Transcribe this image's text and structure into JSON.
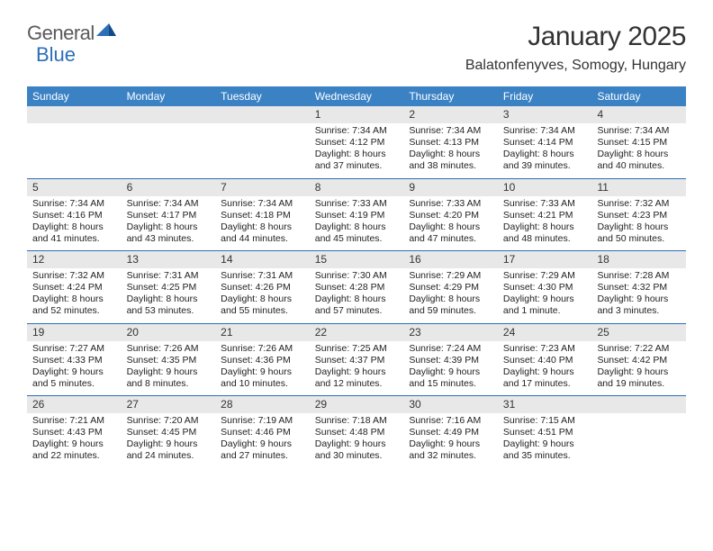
{
  "logo": {
    "word1": "General",
    "word2": "Blue"
  },
  "title": "January 2025",
  "location": "Balatonfenyves, Somogy, Hungary",
  "colors": {
    "header_bar": "#3b82c4",
    "row_divider": "#2d6fb6",
    "daynum_bg": "#e8e8e8",
    "text": "#222222",
    "logo_blue": "#2d6fb6",
    "logo_gray": "#5a5a5a"
  },
  "weekdays": [
    "Sunday",
    "Monday",
    "Tuesday",
    "Wednesday",
    "Thursday",
    "Friday",
    "Saturday"
  ],
  "weeks": [
    [
      {
        "n": "",
        "empty": true
      },
      {
        "n": "",
        "empty": true
      },
      {
        "n": "",
        "empty": true
      },
      {
        "n": "1",
        "sr": "Sunrise: 7:34 AM",
        "ss": "Sunset: 4:12 PM",
        "d1": "Daylight: 8 hours",
        "d2": "and 37 minutes."
      },
      {
        "n": "2",
        "sr": "Sunrise: 7:34 AM",
        "ss": "Sunset: 4:13 PM",
        "d1": "Daylight: 8 hours",
        "d2": "and 38 minutes."
      },
      {
        "n": "3",
        "sr": "Sunrise: 7:34 AM",
        "ss": "Sunset: 4:14 PM",
        "d1": "Daylight: 8 hours",
        "d2": "and 39 minutes."
      },
      {
        "n": "4",
        "sr": "Sunrise: 7:34 AM",
        "ss": "Sunset: 4:15 PM",
        "d1": "Daylight: 8 hours",
        "d2": "and 40 minutes."
      }
    ],
    [
      {
        "n": "5",
        "sr": "Sunrise: 7:34 AM",
        "ss": "Sunset: 4:16 PM",
        "d1": "Daylight: 8 hours",
        "d2": "and 41 minutes."
      },
      {
        "n": "6",
        "sr": "Sunrise: 7:34 AM",
        "ss": "Sunset: 4:17 PM",
        "d1": "Daylight: 8 hours",
        "d2": "and 43 minutes."
      },
      {
        "n": "7",
        "sr": "Sunrise: 7:34 AM",
        "ss": "Sunset: 4:18 PM",
        "d1": "Daylight: 8 hours",
        "d2": "and 44 minutes."
      },
      {
        "n": "8",
        "sr": "Sunrise: 7:33 AM",
        "ss": "Sunset: 4:19 PM",
        "d1": "Daylight: 8 hours",
        "d2": "and 45 minutes."
      },
      {
        "n": "9",
        "sr": "Sunrise: 7:33 AM",
        "ss": "Sunset: 4:20 PM",
        "d1": "Daylight: 8 hours",
        "d2": "and 47 minutes."
      },
      {
        "n": "10",
        "sr": "Sunrise: 7:33 AM",
        "ss": "Sunset: 4:21 PM",
        "d1": "Daylight: 8 hours",
        "d2": "and 48 minutes."
      },
      {
        "n": "11",
        "sr": "Sunrise: 7:32 AM",
        "ss": "Sunset: 4:23 PM",
        "d1": "Daylight: 8 hours",
        "d2": "and 50 minutes."
      }
    ],
    [
      {
        "n": "12",
        "sr": "Sunrise: 7:32 AM",
        "ss": "Sunset: 4:24 PM",
        "d1": "Daylight: 8 hours",
        "d2": "and 52 minutes."
      },
      {
        "n": "13",
        "sr": "Sunrise: 7:31 AM",
        "ss": "Sunset: 4:25 PM",
        "d1": "Daylight: 8 hours",
        "d2": "and 53 minutes."
      },
      {
        "n": "14",
        "sr": "Sunrise: 7:31 AM",
        "ss": "Sunset: 4:26 PM",
        "d1": "Daylight: 8 hours",
        "d2": "and 55 minutes."
      },
      {
        "n": "15",
        "sr": "Sunrise: 7:30 AM",
        "ss": "Sunset: 4:28 PM",
        "d1": "Daylight: 8 hours",
        "d2": "and 57 minutes."
      },
      {
        "n": "16",
        "sr": "Sunrise: 7:29 AM",
        "ss": "Sunset: 4:29 PM",
        "d1": "Daylight: 8 hours",
        "d2": "and 59 minutes."
      },
      {
        "n": "17",
        "sr": "Sunrise: 7:29 AM",
        "ss": "Sunset: 4:30 PM",
        "d1": "Daylight: 9 hours",
        "d2": "and 1 minute."
      },
      {
        "n": "18",
        "sr": "Sunrise: 7:28 AM",
        "ss": "Sunset: 4:32 PM",
        "d1": "Daylight: 9 hours",
        "d2": "and 3 minutes."
      }
    ],
    [
      {
        "n": "19",
        "sr": "Sunrise: 7:27 AM",
        "ss": "Sunset: 4:33 PM",
        "d1": "Daylight: 9 hours",
        "d2": "and 5 minutes."
      },
      {
        "n": "20",
        "sr": "Sunrise: 7:26 AM",
        "ss": "Sunset: 4:35 PM",
        "d1": "Daylight: 9 hours",
        "d2": "and 8 minutes."
      },
      {
        "n": "21",
        "sr": "Sunrise: 7:26 AM",
        "ss": "Sunset: 4:36 PM",
        "d1": "Daylight: 9 hours",
        "d2": "and 10 minutes."
      },
      {
        "n": "22",
        "sr": "Sunrise: 7:25 AM",
        "ss": "Sunset: 4:37 PM",
        "d1": "Daylight: 9 hours",
        "d2": "and 12 minutes."
      },
      {
        "n": "23",
        "sr": "Sunrise: 7:24 AM",
        "ss": "Sunset: 4:39 PM",
        "d1": "Daylight: 9 hours",
        "d2": "and 15 minutes."
      },
      {
        "n": "24",
        "sr": "Sunrise: 7:23 AM",
        "ss": "Sunset: 4:40 PM",
        "d1": "Daylight: 9 hours",
        "d2": "and 17 minutes."
      },
      {
        "n": "25",
        "sr": "Sunrise: 7:22 AM",
        "ss": "Sunset: 4:42 PM",
        "d1": "Daylight: 9 hours",
        "d2": "and 19 minutes."
      }
    ],
    [
      {
        "n": "26",
        "sr": "Sunrise: 7:21 AM",
        "ss": "Sunset: 4:43 PM",
        "d1": "Daylight: 9 hours",
        "d2": "and 22 minutes."
      },
      {
        "n": "27",
        "sr": "Sunrise: 7:20 AM",
        "ss": "Sunset: 4:45 PM",
        "d1": "Daylight: 9 hours",
        "d2": "and 24 minutes."
      },
      {
        "n": "28",
        "sr": "Sunrise: 7:19 AM",
        "ss": "Sunset: 4:46 PM",
        "d1": "Daylight: 9 hours",
        "d2": "and 27 minutes."
      },
      {
        "n": "29",
        "sr": "Sunrise: 7:18 AM",
        "ss": "Sunset: 4:48 PM",
        "d1": "Daylight: 9 hours",
        "d2": "and 30 minutes."
      },
      {
        "n": "30",
        "sr": "Sunrise: 7:16 AM",
        "ss": "Sunset: 4:49 PM",
        "d1": "Daylight: 9 hours",
        "d2": "and 32 minutes."
      },
      {
        "n": "31",
        "sr": "Sunrise: 7:15 AM",
        "ss": "Sunset: 4:51 PM",
        "d1": "Daylight: 9 hours",
        "d2": "and 35 minutes."
      },
      {
        "n": "",
        "empty": true
      }
    ]
  ]
}
